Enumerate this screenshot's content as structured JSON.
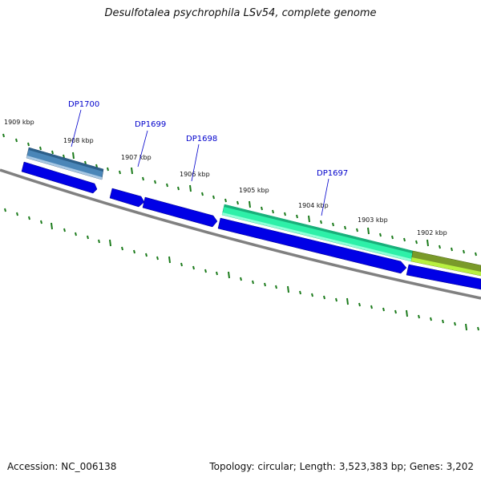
{
  "title": "Desulfotalea psychrophila LSv54, complete genome",
  "footer": {
    "accession": "Accession: NC_006138",
    "summary": "Topology: circular; Length: 3,523,383 bp; Genes: 3,202"
  },
  "tick_labels": [
    "1909 kbp",
    "1908 kbp",
    "1907 kbp",
    "1906 kbp",
    "1905 kbp",
    "1904 kbp",
    "1903 kbp",
    "1902 kbp"
  ],
  "gene_labels": [
    "DP1700",
    "DP1699",
    "DP1698",
    "DP1697"
  ],
  "colors": {
    "backbone": "#808080",
    "tick": "#1a7a1a",
    "cds": "#0000e6",
    "label": "#0000cc",
    "dp1700": "#4a86b8",
    "dp1697": "#2ef0a8",
    "next_gene": "#7a9a2a"
  }
}
